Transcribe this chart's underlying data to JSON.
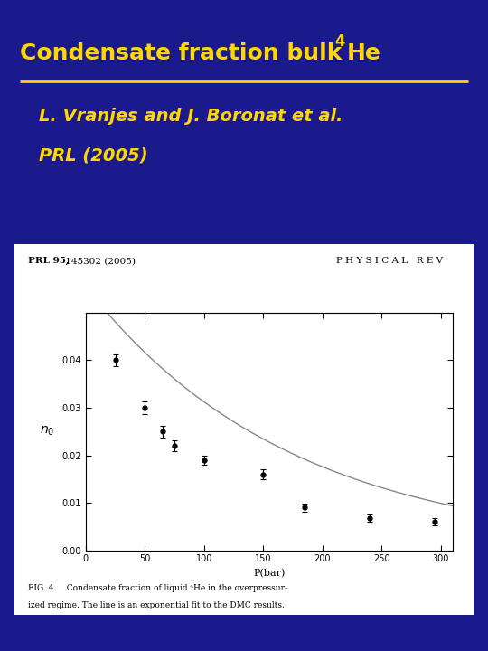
{
  "title_part1": "Condensate fraction bulk ",
  "title_sup": "4",
  "title_part2": "He",
  "citation_line1": "L. Vranjes and J. Boronat et al.",
  "citation_line2": "PRL (2005)",
  "background_color": "#1a1a8c",
  "title_color": "#ffd700",
  "citation_color": "#ffd700",
  "separator_color": "#ffd700",
  "paper_header_left": "PRL 95, 145302 (2005)",
  "paper_header_right": "PHYSICAL REV",
  "fig_caption_line1": "FIG. 4.    Condensate fraction of liquid ⁴He in the overpressur-",
  "fig_caption_line2": "ized regime. The line is an exponential fit to the DMC results.",
  "data_x": [
    25,
    50,
    65,
    75,
    100,
    150,
    185,
    240,
    295
  ],
  "data_y": [
    0.04,
    0.03,
    0.025,
    0.022,
    0.019,
    0.016,
    0.009,
    0.0068,
    0.006
  ],
  "data_yerr": [
    0.0012,
    0.0013,
    0.0012,
    0.0011,
    0.001,
    0.001,
    0.0009,
    0.0008,
    0.0008
  ],
  "fit_A": 0.0555,
  "fit_b": 0.00575,
  "xlabel": "P(bar)",
  "xlim": [
    0,
    310
  ],
  "ylim": [
    0,
    0.05
  ],
  "yticks": [
    0,
    0.01,
    0.02,
    0.03,
    0.04
  ],
  "xticks": [
    0,
    50,
    100,
    150,
    200,
    250,
    300
  ]
}
